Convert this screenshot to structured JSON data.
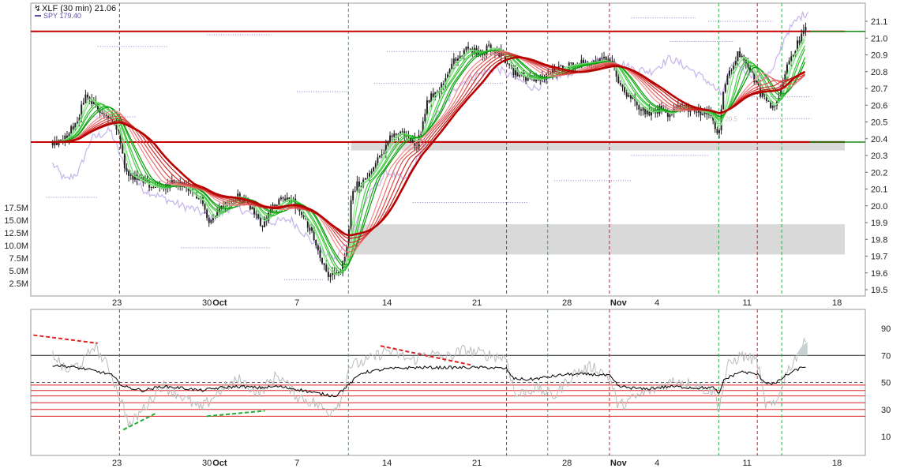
{
  "chart_data": [
    {
      "type": "candlestick",
      "legend": {
        "main_label": "XLF (30 min) 21.06",
        "compare_label": "SPY 179.40"
      },
      "price_axis": {
        "range": [
          19.5,
          21.2
        ],
        "ticks": [
          {
            "value": 19.5,
            "label": "19.5"
          },
          {
            "value": 19.6,
            "label": "19.6"
          },
          {
            "value": 19.7,
            "label": "19.7"
          },
          {
            "value": 19.8,
            "label": "19.8"
          },
          {
            "value": 19.9,
            "label": "19.9"
          },
          {
            "value": 20.0,
            "label": "20.0"
          },
          {
            "value": 20.1,
            "label": "20.1"
          },
          {
            "value": 20.2,
            "label": "20.2"
          },
          {
            "value": 20.3,
            "label": "20.3"
          },
          {
            "value": 20.4,
            "label": "20.4"
          },
          {
            "value": 20.5,
            "label": "20.5"
          },
          {
            "value": 20.6,
            "label": "20.6"
          },
          {
            "value": 20.7,
            "label": "20.7"
          },
          {
            "value": 20.8,
            "label": "20.8"
          },
          {
            "value": 20.9,
            "label": "20.9"
          },
          {
            "value": 21.0,
            "label": "21.0"
          },
          {
            "value": 21.1,
            "label": "21.1"
          }
        ]
      },
      "volume_axis": {
        "range": [
          0,
          20000000
        ],
        "ticks": [
          {
            "value": 2500000,
            "label": "2.5M"
          },
          {
            "value": 5000000,
            "label": "5.0M"
          },
          {
            "value": 7500000,
            "label": "7.5M"
          },
          {
            "value": 10000000,
            "label": "10.0M"
          },
          {
            "value": 12500000,
            "label": "12.5M"
          },
          {
            "value": 15000000,
            "label": "15.0M"
          },
          {
            "value": 17500000,
            "label": "17.5M"
          }
        ]
      },
      "x_axis": {
        "ticks": [
          {
            "day": 23,
            "label": "23",
            "bold": false
          },
          {
            "day": 30,
            "label": "30",
            "bold": false
          },
          {
            "day": 31,
            "label": "Oct",
            "bold": true
          },
          {
            "day": 37,
            "label": "7",
            "bold": false
          },
          {
            "day": 44,
            "label": "14",
            "bold": false
          },
          {
            "day": 51,
            "label": "21",
            "bold": false
          },
          {
            "day": 58,
            "label": "28",
            "bold": false
          },
          {
            "day": 62,
            "label": "Nov",
            "bold": true
          },
          {
            "day": 65,
            "label": "4",
            "bold": false
          },
          {
            "day": 72,
            "label": "11",
            "bold": false
          },
          {
            "day": 79,
            "label": "18",
            "bold": false
          }
        ]
      },
      "price_path": [
        [
          18.0,
          20.38
        ],
        [
          19.0,
          20.4
        ],
        [
          20.0,
          20.52
        ],
        [
          20.5,
          20.66
        ],
        [
          21.0,
          20.62
        ],
        [
          21.5,
          20.58
        ],
        [
          22.5,
          20.52
        ],
        [
          23.2,
          20.42
        ],
        [
          23.6,
          20.2
        ],
        [
          24.5,
          20.16
        ],
        [
          25.5,
          20.12
        ],
        [
          26.5,
          20.1
        ],
        [
          27.5,
          20.14
        ],
        [
          28.5,
          20.1
        ],
        [
          29.0,
          20.05
        ],
        [
          29.7,
          20.03
        ],
        [
          30.2,
          19.9
        ],
        [
          30.8,
          19.96
        ],
        [
          31.5,
          20.04
        ],
        [
          32.3,
          20.06
        ],
        [
          33.0,
          20.03
        ],
        [
          33.8,
          19.96
        ],
        [
          34.3,
          19.88
        ],
        [
          34.8,
          19.96
        ],
        [
          35.6,
          20.02
        ],
        [
          36.5,
          20.05
        ],
        [
          37.5,
          19.92
        ],
        [
          38.2,
          19.85
        ],
        [
          38.8,
          19.7
        ],
        [
          39.4,
          19.6
        ],
        [
          40.0,
          19.58
        ],
        [
          40.5,
          19.63
        ],
        [
          40.9,
          19.74
        ],
        [
          41.3,
          20.1
        ],
        [
          42.0,
          20.14
        ],
        [
          42.8,
          20.2
        ],
        [
          43.5,
          20.3
        ],
        [
          44.2,
          20.4
        ],
        [
          45.0,
          20.44
        ],
        [
          45.8,
          20.4
        ],
        [
          46.3,
          20.36
        ],
        [
          46.7,
          20.46
        ],
        [
          47.1,
          20.62
        ],
        [
          47.7,
          20.68
        ],
        [
          48.3,
          20.72
        ],
        [
          48.8,
          20.82
        ],
        [
          49.5,
          20.88
        ],
        [
          50.3,
          20.94
        ],
        [
          51.2,
          20.9
        ],
        [
          52.0,
          20.95
        ],
        [
          53.0,
          20.9
        ],
        [
          53.6,
          20.82
        ],
        [
          54.2,
          20.78
        ],
        [
          55.0,
          20.76
        ],
        [
          55.8,
          20.75
        ],
        [
          56.5,
          20.78
        ],
        [
          57.4,
          20.82
        ],
        [
          58.3,
          20.84
        ],
        [
          59.3,
          20.85
        ],
        [
          60.2,
          20.86
        ],
        [
          61.0,
          20.87
        ],
        [
          61.6,
          20.82
        ],
        [
          62.3,
          20.7
        ],
        [
          63.0,
          20.64
        ],
        [
          63.8,
          20.58
        ],
        [
          64.5,
          20.55
        ],
        [
          65.2,
          20.58
        ],
        [
          66.0,
          20.54
        ],
        [
          66.8,
          20.6
        ],
        [
          67.5,
          20.58
        ],
        [
          68.4,
          20.56
        ],
        [
          69.0,
          20.55
        ],
        [
          69.4,
          20.5
        ],
        [
          69.8,
          20.4
        ],
        [
          70.2,
          20.72
        ],
        [
          70.8,
          20.82
        ],
        [
          71.3,
          20.9
        ],
        [
          71.8,
          20.88
        ],
        [
          72.4,
          20.78
        ],
        [
          73.0,
          20.68
        ],
        [
          73.6,
          20.62
        ],
        [
          74.0,
          20.58
        ],
        [
          74.4,
          20.64
        ],
        [
          75.0,
          20.82
        ],
        [
          75.6,
          20.92
        ],
        [
          76.2,
          21.0
        ],
        [
          76.6,
          21.06
        ]
      ],
      "compare_path": [
        [
          18.0,
          20.25
        ],
        [
          19.0,
          20.15
        ],
        [
          20.0,
          20.2
        ],
        [
          21.0,
          20.4
        ],
        [
          22.5,
          20.45
        ],
        [
          23.5,
          20.25
        ],
        [
          25.0,
          20.1
        ],
        [
          26.5,
          20.05
        ],
        [
          28.0,
          20.0
        ],
        [
          29.0,
          19.98
        ],
        [
          30.5,
          19.92
        ],
        [
          32.0,
          20.0
        ],
        [
          33.5,
          19.95
        ],
        [
          35.0,
          19.9
        ],
        [
          36.5,
          19.92
        ],
        [
          38.0,
          19.8
        ],
        [
          39.0,
          19.72
        ],
        [
          40.0,
          19.68
        ],
        [
          41.0,
          19.8
        ],
        [
          42.5,
          20.05
        ],
        [
          44.0,
          20.2
        ],
        [
          45.5,
          20.15
        ],
        [
          46.5,
          20.3
        ],
        [
          47.5,
          20.5
        ],
        [
          48.5,
          20.6
        ],
        [
          49.5,
          20.72
        ],
        [
          51.0,
          20.78
        ],
        [
          52.5,
          20.82
        ],
        [
          54.0,
          20.76
        ],
        [
          55.5,
          20.7
        ],
        [
          57.0,
          20.76
        ],
        [
          58.5,
          20.8
        ],
        [
          60.0,
          20.86
        ],
        [
          61.5,
          20.88
        ],
        [
          63.0,
          20.82
        ],
        [
          64.5,
          20.8
        ],
        [
          66.0,
          20.88
        ],
        [
          67.5,
          20.82
        ],
        [
          69.0,
          20.74
        ],
        [
          70.0,
          20.66
        ],
        [
          71.0,
          20.86
        ],
        [
          72.0,
          20.8
        ],
        [
          73.0,
          20.76
        ],
        [
          74.0,
          20.8
        ],
        [
          75.0,
          21.02
        ],
        [
          76.0,
          21.12
        ],
        [
          76.8,
          21.16
        ]
      ],
      "horizontal_lines": [
        {
          "value": 21.04,
          "color": "#cc0000"
        },
        {
          "value": 20.38,
          "color": "#cc0000"
        }
      ],
      "zones": [
        {
          "from": 20.33,
          "to": 20.39,
          "color": "#d9d9d9"
        },
        {
          "from": 19.71,
          "to": 19.89,
          "color": "#d9d9d9"
        }
      ],
      "vertical_markers": [
        {
          "day": 23.2,
          "color": "#cc2222"
        },
        {
          "day": 41.0,
          "color": "#33aa55"
        },
        {
          "day": 53.3,
          "color": "#cc2222"
        },
        {
          "day": 56.5,
          "color": "#33aa55"
        },
        {
          "day": 61.3,
          "color": "#cc2222"
        },
        {
          "day": 69.8,
          "color": "#33aa55"
        },
        {
          "day": 72.8,
          "color": "#cc2222"
        },
        {
          "day": 74.7,
          "color": "#33aa55"
        }
      ],
      "price_scale_shown": "20.5"
    },
    {
      "type": "line",
      "y_axis": {
        "range": [
          0,
          100
        ],
        "ticks": [
          {
            "value": 10,
            "label": "10"
          },
          {
            "value": 30,
            "label": "30"
          },
          {
            "value": 50,
            "label": "50"
          },
          {
            "value": 70,
            "label": "70"
          },
          {
            "value": 90,
            "label": "90"
          }
        ]
      },
      "reference_lines": [
        70,
        48,
        44,
        40,
        35,
        30,
        25
      ],
      "main_series": [
        [
          18.0,
          63
        ],
        [
          19.0,
          62
        ],
        [
          20.5,
          60
        ],
        [
          22.5,
          56
        ],
        [
          23.5,
          47
        ],
        [
          25.0,
          44
        ],
        [
          26.5,
          47
        ],
        [
          28.0,
          46
        ],
        [
          29.5,
          44
        ],
        [
          31.0,
          46
        ],
        [
          32.5,
          47
        ],
        [
          34.0,
          46
        ],
        [
          35.5,
          47
        ],
        [
          37.0,
          45
        ],
        [
          38.5,
          42
        ],
        [
          40.0,
          40
        ],
        [
          41.0,
          48
        ],
        [
          42.0,
          57
        ],
        [
          44.0,
          60
        ],
        [
          46.0,
          61
        ],
        [
          48.0,
          61
        ],
        [
          50.0,
          61
        ],
        [
          52.0,
          61
        ],
        [
          53.3,
          60
        ],
        [
          53.8,
          53
        ],
        [
          55.0,
          52
        ],
        [
          56.5,
          54
        ],
        [
          58.0,
          56
        ],
        [
          60.0,
          56
        ],
        [
          61.3,
          55
        ],
        [
          62.0,
          47
        ],
        [
          64.0,
          45
        ],
        [
          66.0,
          47
        ],
        [
          68.0,
          46
        ],
        [
          69.5,
          46
        ],
        [
          69.8,
          40
        ],
        [
          70.2,
          52
        ],
        [
          71.5,
          58
        ],
        [
          72.8,
          56
        ],
        [
          73.4,
          50
        ],
        [
          74.2,
          49
        ],
        [
          75.0,
          55
        ],
        [
          76.0,
          60
        ],
        [
          76.6,
          62
        ]
      ],
      "compare_series": [
        [
          18.0,
          72
        ],
        [
          19.0,
          58
        ],
        [
          20.5,
          66
        ],
        [
          21.2,
          78
        ],
        [
          22.5,
          58
        ],
        [
          23.5,
          32
        ],
        [
          24.0,
          18
        ],
        [
          25.0,
          30
        ],
        [
          26.5,
          48
        ],
        [
          28.0,
          40
        ],
        [
          29.5,
          30
        ],
        [
          31.0,
          44
        ],
        [
          32.5,
          52
        ],
        [
          34.0,
          42
        ],
        [
          35.5,
          56
        ],
        [
          37.0,
          40
        ],
        [
          38.5,
          34
        ],
        [
          39.5,
          28
        ],
        [
          40.5,
          38
        ],
        [
          41.0,
          62
        ],
        [
          42.5,
          66
        ],
        [
          44.0,
          74
        ],
        [
          46.0,
          66
        ],
        [
          47.0,
          72
        ],
        [
          48.5,
          68
        ],
        [
          50.0,
          74
        ],
        [
          51.5,
          71
        ],
        [
          53.3,
          68
        ],
        [
          54.0,
          40
        ],
        [
          55.5,
          46
        ],
        [
          57.0,
          40
        ],
        [
          58.5,
          56
        ],
        [
          60.0,
          62
        ],
        [
          61.3,
          54
        ],
        [
          62.0,
          32
        ],
        [
          63.5,
          40
        ],
        [
          65.0,
          46
        ],
        [
          66.5,
          52
        ],
        [
          68.0,
          48
        ],
        [
          69.5,
          42
        ],
        [
          69.8,
          30
        ],
        [
          70.5,
          62
        ],
        [
          71.5,
          70
        ],
        [
          72.8,
          66
        ],
        [
          73.4,
          34
        ],
        [
          74.2,
          32
        ],
        [
          75.0,
          56
        ],
        [
          76.0,
          72
        ],
        [
          76.6,
          80
        ]
      ],
      "divergence_lines": [
        {
          "from": [
            16.5,
            85
          ],
          "to": [
            21.5,
            79
          ],
          "color": "#dd2222"
        },
        {
          "from": [
            23.5,
            15
          ],
          "to": [
            26.0,
            27
          ],
          "color": "#22aa33"
        },
        {
          "from": [
            30.0,
            25
          ],
          "to": [
            34.5,
            29
          ],
          "color": "#22aa33"
        },
        {
          "from": [
            43.5,
            77
          ],
          "to": [
            50.5,
            63
          ],
          "color": "#dd2222"
        }
      ]
    }
  ]
}
